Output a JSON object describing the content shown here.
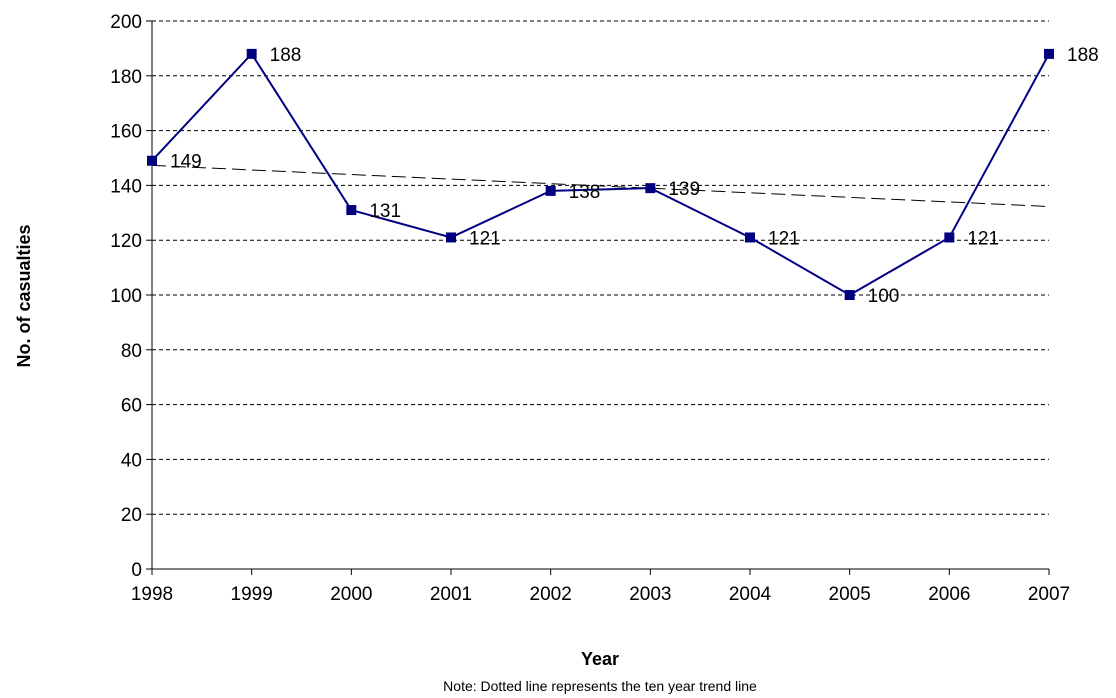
{
  "chart_data": {
    "type": "line",
    "categories": [
      "1998",
      "1999",
      "2000",
      "2001",
      "2002",
      "2003",
      "2004",
      "2005",
      "2006",
      "2007"
    ],
    "series": [
      {
        "values": [
          149,
          188,
          131,
          121,
          138,
          139,
          121,
          100,
          121,
          188
        ],
        "data_labels": [
          "149",
          "188",
          "131",
          "121",
          "138",
          "139",
          "121",
          "100",
          "121",
          "188"
        ],
        "color": "#000080",
        "marker": "square"
      }
    ],
    "trend_line": {
      "style": "dashed",
      "start_value": 147.3,
      "end_value": 132.3,
      "color": "#000000"
    },
    "title": "",
    "xlabel": "Year",
    "ylabel": "No. of casualties",
    "note": "Note: Dotted line represents the ten year trend line",
    "ylim": [
      0,
      200
    ],
    "y_ticks": [
      0,
      20,
      40,
      60,
      80,
      100,
      120,
      140,
      160,
      180,
      200
    ],
    "grid": "horizontal dashed",
    "legend": "none"
  }
}
